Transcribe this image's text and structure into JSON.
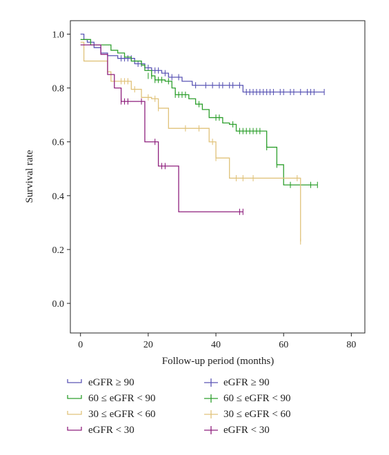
{
  "chart_data": {
    "type": "line",
    "title": "",
    "xlabel": "Follow-up period (months)",
    "ylabel": "Survival rate",
    "xlim": [
      -3,
      84
    ],
    "ylim": [
      -0.11,
      1.05
    ],
    "xticks": [
      0,
      20,
      40,
      60,
      80
    ],
    "yticks": [
      0.0,
      0.2,
      0.4,
      0.6,
      0.8,
      1.0
    ],
    "xtick_labels": [
      "0",
      "20",
      "40",
      "60",
      "80"
    ],
    "ytick_labels": [
      "0.0",
      "0.2",
      "0.4",
      "0.6",
      "0.8",
      "1.0"
    ],
    "grid": false,
    "legend_position": "bottom",
    "legend_left_labels": [
      "eGFR ≥ 90",
      "60 ≤ eGFR < 90",
      "30 ≤ eGFR < 60",
      "eGFR < 30"
    ],
    "legend_right_labels": [
      "eGFR ≥ 90",
      "60 ≤ eGFR < 90",
      "30 ≤ eGFR < 60",
      "eGFR < 30"
    ],
    "series": [
      {
        "color": "#5a55b5",
        "steps": [
          [
            0,
            1.0
          ],
          [
            1,
            0.98
          ],
          [
            2,
            0.97
          ],
          [
            4,
            0.95
          ],
          [
            6,
            0.93
          ],
          [
            8,
            0.92
          ],
          [
            11,
            0.91
          ],
          [
            16,
            0.89
          ],
          [
            19,
            0.875
          ],
          [
            21,
            0.865
          ],
          [
            24,
            0.855
          ],
          [
            26,
            0.84
          ],
          [
            30,
            0.825
          ],
          [
            33,
            0.81
          ],
          [
            48,
            0.785
          ],
          [
            72,
            0.785
          ]
        ],
        "censored": [
          [
            12,
            0.91
          ],
          [
            13,
            0.91
          ],
          [
            14,
            0.91
          ],
          [
            15,
            0.91
          ],
          [
            17,
            0.89
          ],
          [
            18,
            0.89
          ],
          [
            20,
            0.875
          ],
          [
            22,
            0.865
          ],
          [
            23,
            0.865
          ],
          [
            25,
            0.855
          ],
          [
            27,
            0.84
          ],
          [
            29,
            0.84
          ],
          [
            34,
            0.81
          ],
          [
            37,
            0.81
          ],
          [
            39,
            0.81
          ],
          [
            41,
            0.81
          ],
          [
            42,
            0.81
          ],
          [
            44,
            0.81
          ],
          [
            45,
            0.81
          ],
          [
            47,
            0.81
          ],
          [
            49,
            0.785
          ],
          [
            50,
            0.785
          ],
          [
            51,
            0.785
          ],
          [
            52,
            0.785
          ],
          [
            53,
            0.785
          ],
          [
            54,
            0.785
          ],
          [
            55,
            0.785
          ],
          [
            56,
            0.785
          ],
          [
            57,
            0.785
          ],
          [
            59,
            0.785
          ],
          [
            60,
            0.785
          ],
          [
            62,
            0.785
          ],
          [
            63,
            0.785
          ],
          [
            65,
            0.785
          ],
          [
            67,
            0.785
          ],
          [
            68,
            0.785
          ],
          [
            69,
            0.785
          ],
          [
            72,
            0.785
          ]
        ]
      },
      {
        "color": "#2c9f2c",
        "steps": [
          [
            0,
            0.98
          ],
          [
            3,
            0.96
          ],
          [
            9,
            0.94
          ],
          [
            11,
            0.93
          ],
          [
            13,
            0.915
          ],
          [
            15,
            0.9
          ],
          [
            18,
            0.885
          ],
          [
            19,
            0.865
          ],
          [
            21,
            0.845
          ],
          [
            22,
            0.83
          ],
          [
            25,
            0.825
          ],
          [
            27,
            0.8
          ],
          [
            28,
            0.775
          ],
          [
            32,
            0.76
          ],
          [
            34,
            0.74
          ],
          [
            36,
            0.72
          ],
          [
            38,
            0.69
          ],
          [
            42,
            0.67
          ],
          [
            44,
            0.665
          ],
          [
            46,
            0.64
          ],
          [
            55,
            0.58
          ],
          [
            58,
            0.515
          ],
          [
            60,
            0.44
          ],
          [
            70,
            0.44
          ]
        ],
        "censored": [
          [
            20,
            0.845
          ],
          [
            21,
            0.845
          ],
          [
            22,
            0.83
          ],
          [
            23,
            0.83
          ],
          [
            24,
            0.83
          ],
          [
            26,
            0.825
          ],
          [
            28,
            0.775
          ],
          [
            29,
            0.775
          ],
          [
            30,
            0.775
          ],
          [
            31,
            0.775
          ],
          [
            35,
            0.74
          ],
          [
            40,
            0.69
          ],
          [
            41,
            0.69
          ],
          [
            45,
            0.665
          ],
          [
            47,
            0.64
          ],
          [
            48,
            0.64
          ],
          [
            49,
            0.64
          ],
          [
            50,
            0.64
          ],
          [
            51,
            0.64
          ],
          [
            52,
            0.64
          ],
          [
            53,
            0.64
          ],
          [
            55,
            0.58
          ],
          [
            58,
            0.515
          ],
          [
            62,
            0.44
          ],
          [
            68,
            0.44
          ],
          [
            70,
            0.44
          ]
        ]
      },
      {
        "color": "#e0c27a",
        "steps": [
          [
            0,
            0.97
          ],
          [
            1,
            0.9
          ],
          [
            8,
            0.86
          ],
          [
            9,
            0.825
          ],
          [
            15,
            0.795
          ],
          [
            18,
            0.765
          ],
          [
            21,
            0.76
          ],
          [
            23,
            0.725
          ],
          [
            26,
            0.65
          ],
          [
            38,
            0.6
          ],
          [
            40,
            0.54
          ],
          [
            44,
            0.465
          ],
          [
            65,
            0.23
          ]
        ],
        "censored": [
          [
            12,
            0.825
          ],
          [
            13,
            0.825
          ],
          [
            14,
            0.825
          ],
          [
            16,
            0.795
          ],
          [
            20,
            0.765
          ],
          [
            22,
            0.76
          ],
          [
            23,
            0.725
          ],
          [
            31,
            0.65
          ],
          [
            35,
            0.65
          ],
          [
            39,
            0.6
          ],
          [
            40,
            0.54
          ],
          [
            46,
            0.465
          ],
          [
            48,
            0.465
          ],
          [
            51,
            0.465
          ],
          [
            64,
            0.465
          ],
          [
            65,
            0.23
          ]
        ]
      },
      {
        "color": "#8e1f7d",
        "steps": [
          [
            0,
            0.96
          ],
          [
            6,
            0.925
          ],
          [
            8,
            0.85
          ],
          [
            10,
            0.8
          ],
          [
            12,
            0.75
          ],
          [
            19,
            0.6
          ],
          [
            23,
            0.51
          ],
          [
            29,
            0.34
          ],
          [
            48,
            0.34
          ]
        ],
        "censored": [
          [
            12,
            0.75
          ],
          [
            13,
            0.75
          ],
          [
            14,
            0.75
          ],
          [
            18,
            0.75
          ],
          [
            22,
            0.6
          ],
          [
            24,
            0.51
          ],
          [
            25,
            0.51
          ],
          [
            47,
            0.34
          ],
          [
            48,
            0.34
          ]
        ]
      }
    ]
  }
}
